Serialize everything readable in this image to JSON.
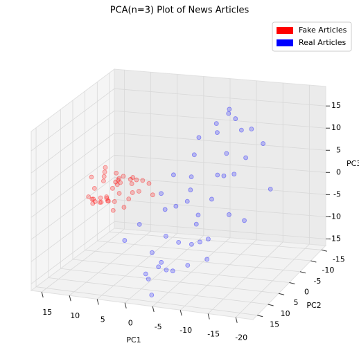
{
  "chart_data": {
    "type": "scatter3d",
    "title": "PCA(n=3) Plot of News Articles",
    "x_label": "PC1",
    "y_label": "PC2",
    "z_label": "PC3",
    "xlim": [
      -23.1,
      16.9
    ],
    "ylim": [
      -17,
      17
    ],
    "zlim": [
      -16.5,
      19.4
    ],
    "xticks": [
      15,
      10,
      5,
      0,
      -5,
      -10,
      -15,
      -20
    ],
    "yticks": [
      -15,
      -10,
      -5,
      0,
      5,
      10,
      15
    ],
    "zticks": [
      -15,
      -10,
      -5,
      0,
      5,
      10,
      15
    ],
    "grid": true,
    "legend": "upper right",
    "series": [
      {
        "name": "Fake Articles",
        "color": "#ff0000",
        "x": [
          12,
          10,
          9,
          11,
          8,
          7,
          13,
          10,
          9,
          6,
          11,
          12,
          8,
          7,
          10,
          9,
          5,
          14,
          11,
          8,
          6,
          10,
          12,
          9,
          7,
          4,
          3,
          11,
          8,
          10,
          13,
          9,
          6,
          5,
          12,
          8,
          10,
          7,
          9,
          11
        ],
        "y": [
          2,
          -3,
          0,
          5,
          -1,
          3,
          -4,
          1,
          6,
          -2,
          0,
          3,
          -5,
          1,
          4,
          -1,
          2,
          0,
          -6,
          2,
          -3,
          7,
          -2,
          1,
          5,
          0,
          -2,
          2,
          -4,
          -1,
          1,
          3,
          0,
          -5,
          -3,
          6,
          2,
          -1,
          -2,
          4
        ],
        "z": [
          1,
          0,
          2,
          -1,
          3,
          1,
          0,
          -2,
          0,
          2,
          4,
          -1,
          1,
          -3,
          0,
          2,
          1,
          -2,
          0,
          5,
          -1,
          1,
          2,
          -4,
          0,
          3,
          -1,
          -2,
          1,
          0,
          3,
          -1,
          2,
          0,
          -3,
          1,
          6,
          -2,
          1,
          -1
        ]
      },
      {
        "name": "Real Articles",
        "color": "#0000ff",
        "x": [
          -5,
          -8,
          -3,
          -10,
          -2,
          0,
          -12,
          -6,
          -4,
          -9,
          -1,
          -7,
          -14,
          -3,
          -11,
          -5,
          2,
          -8,
          -15,
          -6,
          -2,
          -10,
          -4,
          -13,
          0,
          -7,
          -9,
          -3,
          -16,
          -5,
          1,
          -11,
          -8,
          -4,
          -6,
          -12,
          -2,
          -9,
          -7,
          -18,
          3,
          -5,
          -10,
          -3,
          -6
        ],
        "y": [
          0,
          5,
          -8,
          3,
          10,
          -4,
          -10,
          8,
          12,
          -6,
          2,
          -12,
          5,
          14,
          0,
          -3,
          6,
          9,
          -8,
          -14,
          4,
          12,
          -2,
          -5,
          8,
          1,
          -10,
          -6,
          3,
          11,
          -1,
          7,
          -15,
          15,
          -9,
          10,
          6,
          -2,
          13,
          -4,
          10,
          -11,
          -7,
          2,
          4
        ],
        "z": [
          5,
          -3,
          10,
          2,
          -8,
          3,
          12,
          -6,
          -10,
          8,
          -2,
          15,
          0,
          -12,
          6,
          -5,
          -4,
          4,
          10,
          13,
          -7,
          -4,
          1,
          8,
          -14,
          -9,
          14,
          7,
          -2,
          -11,
          0,
          -5,
          9,
          -15,
          11,
          -8,
          -12,
          5,
          -10,
          2,
          -6,
          12,
          3,
          -1,
          -13
        ]
      }
    ]
  }
}
